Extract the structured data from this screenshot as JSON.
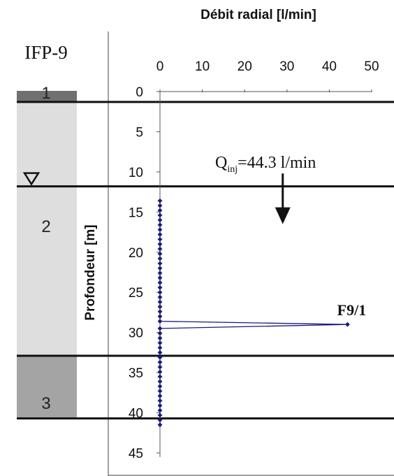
{
  "chart_data": {
    "type": "line",
    "title": "Débit radial [l/min]",
    "well_label": "IFP-9",
    "xlabel": "",
    "ylabel": "Profondeur [m]",
    "xlim": [
      0,
      50
    ],
    "ylim": [
      0,
      45
    ],
    "x_ticks": [
      0,
      10,
      20,
      30,
      40,
      50
    ],
    "y_ticks": [
      0,
      5,
      10,
      15,
      20,
      25,
      30,
      35,
      40,
      45
    ],
    "x_tick_labels": [
      "0",
      "10",
      "20",
      "30",
      "40",
      "50"
    ],
    "y_tick_labels": [
      "0",
      "5",
      "10",
      "15",
      "20",
      "25",
      "30",
      "35",
      "40",
      "45"
    ],
    "y_inverted": true,
    "x_axis_position": "top",
    "grid": false,
    "series": [
      {
        "color": "#1a1a7a",
        "points": [
          [
            0,
            13.6
          ],
          [
            0,
            14.2
          ],
          [
            0,
            14.8
          ],
          [
            0,
            15.4
          ],
          [
            0,
            16.0
          ],
          [
            0,
            16.6
          ],
          [
            0,
            17.2
          ],
          [
            0,
            17.8
          ],
          [
            0,
            18.4
          ],
          [
            0,
            19.0
          ],
          [
            0,
            19.6
          ],
          [
            0,
            20.2
          ],
          [
            0,
            20.8
          ],
          [
            0,
            21.4
          ],
          [
            0,
            22.0
          ],
          [
            0,
            22.6
          ],
          [
            0,
            23.2
          ],
          [
            0,
            23.8
          ],
          [
            0,
            24.4
          ],
          [
            0,
            25.0
          ],
          [
            0,
            25.6
          ],
          [
            0,
            26.2
          ],
          [
            0,
            26.8
          ],
          [
            0,
            27.4
          ],
          [
            0,
            28.0
          ],
          [
            0,
            28.6
          ],
          [
            44.3,
            29.0
          ],
          [
            0,
            29.5
          ],
          [
            0,
            30.1
          ],
          [
            0,
            30.7
          ],
          [
            0,
            31.3
          ],
          [
            0,
            31.9
          ],
          [
            0,
            32.5
          ],
          [
            0,
            33.1
          ],
          [
            0,
            33.7
          ],
          [
            0,
            34.3
          ],
          [
            0,
            34.9
          ],
          [
            0,
            35.5
          ],
          [
            0,
            36.1
          ],
          [
            0,
            36.7
          ],
          [
            0,
            37.3
          ],
          [
            0,
            37.9
          ],
          [
            0,
            38.5
          ],
          [
            0,
            39.1
          ],
          [
            0,
            39.7
          ],
          [
            0,
            40.3
          ],
          [
            0,
            40.9
          ],
          [
            0,
            41.5
          ]
        ]
      }
    ],
    "point_label": {
      "text": "F9/1",
      "x": 44.3,
      "y": 29.0
    },
    "injection": {
      "q_text": "Q",
      "q_sub": "inj",
      "value_text": "=44.3 l/min",
      "arrow_x": 29.0,
      "arrow_from_depth": 10.2,
      "arrow_to_depth": 16.5
    },
    "layer_boundaries": [
      1.3,
      11.8,
      32.9,
      40.7
    ],
    "water_table_depth": 11.8,
    "strata": [
      {
        "label": "1",
        "top": 0,
        "bottom": 1.3,
        "color": "#707070"
      },
      {
        "label": "2",
        "top": 1.3,
        "bottom": 32.9,
        "color": "#dedede"
      },
      {
        "label": "3",
        "top": 32.9,
        "bottom": 40.7,
        "color": "#a4a4a4"
      }
    ]
  }
}
